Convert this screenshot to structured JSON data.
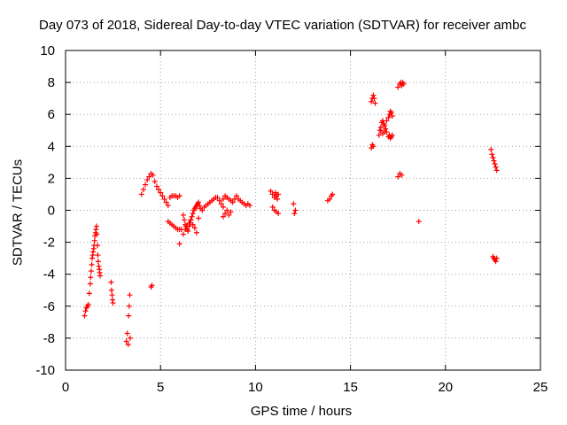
{
  "chart_data": {
    "type": "scatter",
    "title": "Day 073 of 2018, Sidereal Day-to-day VTEC variation (SDTVAR) for receiver ambc",
    "xlabel": "GPS time / hours",
    "ylabel": "SDTVAR / TECUs",
    "xlim": [
      0,
      25
    ],
    "ylim": [
      -10,
      10
    ],
    "xticks": [
      0,
      5,
      10,
      15,
      20,
      25
    ],
    "yticks": [
      -10,
      -8,
      -6,
      -4,
      -2,
      0,
      2,
      4,
      6,
      8,
      10
    ],
    "grid": true,
    "marker": "+",
    "color": "#ff0000",
    "series": [
      {
        "name": "SDTVAR",
        "x": [
          1.0,
          1.05,
          1.1,
          1.15,
          1.2,
          1.25,
          1.3,
          1.32,
          1.35,
          1.38,
          1.4,
          1.43,
          1.45,
          1.48,
          1.5,
          1.53,
          1.55,
          1.58,
          1.6,
          1.63,
          1.65,
          1.68,
          1.7,
          1.72,
          1.75,
          1.78,
          1.8,
          1.82,
          2.4,
          2.42,
          2.45,
          2.47,
          2.5,
          3.2,
          3.25,
          3.3,
          3.32,
          3.35,
          3.38,
          3.4,
          4.5,
          4.55,
          4.0,
          4.1,
          4.2,
          4.3,
          4.4,
          4.5,
          4.6,
          4.7,
          4.8,
          4.9,
          5.0,
          5.1,
          5.2,
          5.3,
          5.4,
          5.5,
          5.6,
          5.7,
          5.8,
          5.9,
          6.0,
          5.4,
          5.5,
          5.6,
          5.7,
          5.8,
          5.9,
          6.0,
          6.1,
          6.2,
          6.25,
          6.3,
          6.35,
          6.4,
          6.45,
          6.5,
          6.55,
          6.6,
          6.65,
          6.7,
          6.75,
          6.8,
          6.85,
          6.9,
          6.95,
          7.0,
          7.05,
          7.1,
          7.2,
          7.3,
          7.4,
          7.5,
          7.6,
          7.7,
          7.8,
          7.9,
          8.0,
          8.1,
          8.2,
          8.3,
          6.2,
          6.3,
          6.4,
          6.5,
          6.6,
          6.7,
          6.8,
          6.9,
          7.0,
          8.3,
          8.4,
          8.5,
          8.6,
          8.7,
          8.8,
          8.9,
          9.0,
          9.1,
          9.2,
          9.3,
          9.4,
          9.5,
          9.6,
          9.7,
          8.3,
          8.4,
          8.5,
          8.6,
          8.7,
          10.8,
          10.9,
          11.0,
          11.05,
          11.1,
          11.15,
          11.2,
          10.9,
          11.0,
          11.1,
          11.2,
          12.0,
          12.05,
          12.1,
          13.8,
          13.9,
          14.0,
          14.05,
          16.1,
          16.15,
          16.2,
          16.25,
          16.3,
          16.1,
          16.15,
          16.2,
          16.5,
          16.55,
          16.6,
          16.65,
          16.7,
          16.75,
          16.8,
          16.85,
          16.9,
          16.9,
          17.0,
          17.05,
          17.1,
          17.15,
          17.2,
          17.0,
          17.05,
          17.1,
          17.15,
          17.2,
          16.6,
          16.7,
          16.8,
          17.5,
          17.6,
          17.65,
          17.7,
          17.75,
          17.8,
          17.5,
          17.6,
          17.7,
          18.6,
          22.4,
          22.45,
          22.5,
          22.55,
          22.6,
          22.65,
          22.7,
          22.5,
          22.55,
          22.6,
          22.65,
          22.7,
          6.0
        ],
        "y": [
          -6.6,
          -6.3,
          -6.1,
          -6.0,
          -5.9,
          -5.2,
          -4.6,
          -4.2,
          -3.8,
          -3.4,
          -3.0,
          -2.8,
          -2.6,
          -2.4,
          -2.2,
          -1.9,
          -1.6,
          -1.4,
          -1.2,
          -1.0,
          -1.5,
          -2.2,
          -2.8,
          -3.2,
          -3.5,
          -3.7,
          -3.9,
          -4.1,
          -4.5,
          -5.0,
          -5.3,
          -5.6,
          -5.8,
          -8.2,
          -7.7,
          -8.4,
          -6.6,
          -6.0,
          -5.3,
          -8.0,
          -4.8,
          -4.7,
          1.0,
          1.3,
          1.6,
          1.9,
          2.1,
          2.3,
          2.2,
          1.8,
          1.5,
          1.3,
          1.1,
          0.9,
          0.7,
          0.5,
          0.3,
          0.8,
          0.9,
          0.9,
          0.9,
          0.8,
          0.9,
          -0.7,
          -0.8,
          -0.9,
          -1.0,
          -1.1,
          -1.2,
          -1.2,
          -1.2,
          -0.3,
          -0.6,
          -0.9,
          -1.0,
          -1.2,
          -1.3,
          -1.0,
          -0.8,
          -0.6,
          -0.4,
          -0.2,
          0.0,
          0.1,
          0.2,
          0.3,
          0.4,
          0.5,
          0.3,
          0.1,
          0.0,
          0.2,
          0.3,
          0.4,
          0.5,
          0.6,
          0.7,
          0.8,
          0.8,
          0.6,
          0.4,
          0.2,
          -1.5,
          -1.2,
          -1.0,
          -0.8,
          -0.6,
          -0.9,
          -1.1,
          -1.4,
          -0.5,
          0.7,
          0.9,
          0.8,
          0.7,
          0.6,
          0.5,
          0.7,
          0.9,
          0.7,
          0.6,
          0.5,
          0.4,
          0.3,
          0.4,
          0.3,
          -0.4,
          -0.2,
          0.0,
          -0.3,
          -0.1,
          1.2,
          1.0,
          0.8,
          1.1,
          0.9,
          0.7,
          1.0,
          0.2,
          0.0,
          -0.1,
          -0.2,
          0.4,
          -0.2,
          0.0,
          0.6,
          0.7,
          0.9,
          1.0,
          6.8,
          7.0,
          7.2,
          7.0,
          6.7,
          3.9,
          4.1,
          4.0,
          4.7,
          5.0,
          5.2,
          5.5,
          5.6,
          5.4,
          5.3,
          5.1,
          4.9,
          5.6,
          5.8,
          6.0,
          6.2,
          6.1,
          5.9,
          4.6,
          4.7,
          4.5,
          4.6,
          4.7,
          5.0,
          4.8,
          4.9,
          7.7,
          7.9,
          8.0,
          7.8,
          8.0,
          7.9,
          2.1,
          2.3,
          2.2,
          -0.7,
          3.8,
          3.5,
          3.3,
          3.1,
          2.9,
          2.7,
          2.5,
          -2.9,
          -3.0,
          -3.1,
          -3.2,
          -3.0,
          -2.1
        ]
      }
    ]
  }
}
